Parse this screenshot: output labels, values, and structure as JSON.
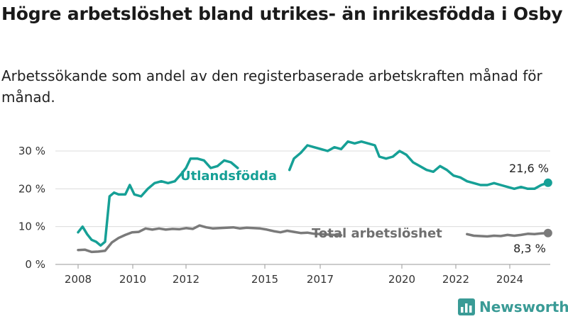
{
  "header": {
    "title": "Högre arbetslöshet bland utrikes- än inrikesfödda i Osby",
    "subtitle": "Arbetssökande som andel av den registerbaserade arbetskraften månad för månad."
  },
  "brand": {
    "name": "Newsworthy",
    "icon": "bar-chart-logo-icon",
    "color": "#3a9b96"
  },
  "chart_data": {
    "type": "line",
    "title": "Högre arbetslöshet bland utrikes- än inrikesfödda i Osby",
    "subtitle": "Arbetssökande som andel av den registerbaserade arbetskraften månad för månad.",
    "xlabel": "",
    "ylabel": "",
    "x_ticks": [
      "2008",
      "2010",
      "2012",
      "2015",
      "2017",
      "2020",
      "2022",
      "2024"
    ],
    "y_ticks": [
      "0 %",
      "10 %",
      "20 %",
      "30 %"
    ],
    "ylim": [
      0,
      30
    ],
    "grid": true,
    "series": [
      {
        "name": "Utlandsfödda",
        "color": "#16a096",
        "end_label": "21,6 %",
        "points": [
          [
            "2008-01",
            8.5
          ],
          [
            "2008-03",
            10
          ],
          [
            "2008-05",
            8
          ],
          [
            "2008-07",
            6.5
          ],
          [
            "2008-09",
            6
          ],
          [
            "2008-11",
            5
          ],
          [
            "2009-01",
            6
          ],
          [
            "2009-03",
            18
          ],
          [
            "2009-05",
            19
          ],
          [
            "2009-07",
            18.5
          ],
          [
            "2009-10",
            18.5
          ],
          [
            "2009-12",
            21
          ],
          [
            "2010-02",
            18.5
          ],
          [
            "2010-05",
            18
          ],
          [
            "2010-08",
            20
          ],
          [
            "2010-11",
            21.5
          ],
          [
            "2011-02",
            22
          ],
          [
            "2011-05",
            21.5
          ],
          [
            "2011-08",
            22
          ],
          [
            "2011-11",
            24
          ],
          [
            "2012-01",
            25.5
          ],
          [
            "2012-03",
            28
          ],
          [
            "2012-06",
            28
          ],
          [
            "2012-09",
            27.5
          ],
          [
            "2012-12",
            25.5
          ],
          [
            "2013-03",
            26
          ],
          [
            "2013-06",
            27.5
          ],
          [
            "2013-09",
            27
          ],
          [
            "2013-12",
            25.5
          ],
          null,
          [
            "2015-11",
            25
          ],
          [
            "2016-01",
            28
          ],
          [
            "2016-04",
            29.5
          ],
          [
            "2016-07",
            31.5
          ],
          [
            "2016-10",
            31
          ],
          [
            "2017-01",
            30.5
          ],
          [
            "2017-04",
            30
          ],
          [
            "2017-07",
            31
          ],
          [
            "2017-10",
            30.5
          ],
          [
            "2018-01",
            32.5
          ],
          [
            "2018-04",
            32
          ],
          [
            "2018-07",
            32.5
          ],
          [
            "2018-10",
            32
          ],
          [
            "2019-01",
            31.5
          ],
          [
            "2019-03",
            28.5
          ],
          [
            "2019-06",
            28
          ],
          [
            "2019-09",
            28.5
          ],
          [
            "2019-12",
            30
          ],
          [
            "2020-03",
            29
          ],
          [
            "2020-06",
            27
          ],
          [
            "2020-09",
            26
          ],
          [
            "2020-12",
            25
          ],
          [
            "2021-03",
            24.5
          ],
          [
            "2021-06",
            26
          ],
          [
            "2021-09",
            25
          ],
          [
            "2021-12",
            23.5
          ],
          [
            "2022-03",
            23
          ],
          [
            "2022-06",
            22
          ],
          [
            "2022-09",
            21.5
          ],
          [
            "2022-12",
            21
          ],
          [
            "2023-03",
            21
          ],
          [
            "2023-06",
            21.5
          ],
          [
            "2023-09",
            21
          ],
          [
            "2023-12",
            20.5
          ],
          [
            "2024-03",
            20
          ],
          [
            "2024-06",
            20.5
          ],
          [
            "2024-09",
            20
          ],
          [
            "2024-12",
            20
          ],
          [
            "2025-03",
            21
          ],
          [
            "2025-06",
            21.6
          ]
        ]
      },
      {
        "name": "Total arbetslöshet",
        "color": "#7a7a7a",
        "end_label": "8,3 %",
        "points": [
          [
            "2008-01",
            3.8
          ],
          [
            "2008-04",
            3.9
          ],
          [
            "2008-07",
            3.3
          ],
          [
            "2008-10",
            3.4
          ],
          [
            "2009-01",
            3.6
          ],
          [
            "2009-04",
            5.8
          ],
          [
            "2009-07",
            7
          ],
          [
            "2009-10",
            7.8
          ],
          [
            "2010-01",
            8.5
          ],
          [
            "2010-04",
            8.6
          ],
          [
            "2010-07",
            9.5
          ],
          [
            "2010-10",
            9.2
          ],
          [
            "2011-01",
            9.5
          ],
          [
            "2011-04",
            9.2
          ],
          [
            "2011-07",
            9.4
          ],
          [
            "2011-10",
            9.3
          ],
          [
            "2012-01",
            9.6
          ],
          [
            "2012-04",
            9.4
          ],
          [
            "2012-07",
            10.3
          ],
          [
            "2012-10",
            9.8
          ],
          [
            "2013-01",
            9.5
          ],
          [
            "2013-04",
            9.6
          ],
          [
            "2013-07",
            9.7
          ],
          [
            "2013-10",
            9.8
          ],
          [
            "2014-01",
            9.5
          ],
          [
            "2014-04",
            9.7
          ],
          [
            "2014-07",
            9.6
          ],
          [
            "2014-10",
            9.5
          ],
          [
            "2015-01",
            9.2
          ],
          [
            "2015-04",
            8.8
          ],
          [
            "2015-07",
            8.5
          ],
          [
            "2015-10",
            8.9
          ],
          [
            "2016-01",
            8.6
          ],
          [
            "2016-04",
            8.3
          ],
          [
            "2016-07",
            8.4
          ],
          [
            "2016-10",
            8.1
          ],
          [
            "2017-01",
            8.0
          ],
          [
            "2017-04",
            7.9
          ],
          [
            "2017-07",
            7.8
          ],
          [
            "2017-10",
            7.7
          ],
          null,
          [
            "2022-06",
            8.0
          ],
          [
            "2022-09",
            7.6
          ],
          [
            "2022-12",
            7.5
          ],
          [
            "2023-03",
            7.4
          ],
          [
            "2023-06",
            7.6
          ],
          [
            "2023-09",
            7.5
          ],
          [
            "2023-12",
            7.8
          ],
          [
            "2024-03",
            7.6
          ],
          [
            "2024-06",
            7.8
          ],
          [
            "2024-09",
            8.1
          ],
          [
            "2024-12",
            8.0
          ],
          [
            "2025-03",
            8.2
          ],
          [
            "2025-06",
            8.3
          ]
        ]
      }
    ]
  }
}
